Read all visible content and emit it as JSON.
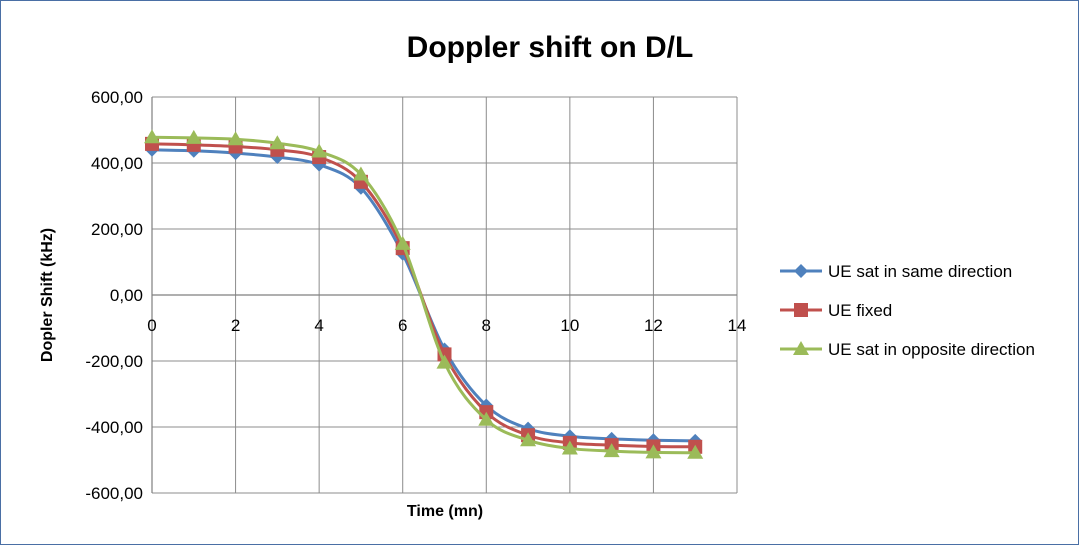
{
  "chart_data": {
    "type": "line",
    "title": "Doppler shift on D/L",
    "xlabel": "Time (mn)",
    "ylabel": "Dopler Shift (kHz)",
    "xlim": [
      0,
      14
    ],
    "ylim": [
      -600,
      600
    ],
    "x_ticks": [
      "0",
      "2",
      "4",
      "6",
      "8",
      "10",
      "12",
      "14"
    ],
    "y_ticks": [
      "600,00",
      "400,00",
      "200,00",
      "0,00",
      "-200,00",
      "-400,00",
      "-600,00"
    ],
    "grid": true,
    "smooth": true,
    "legend_position": "right",
    "x": [
      0,
      1,
      2,
      3,
      4,
      5,
      6,
      7,
      8,
      9,
      10,
      11,
      12,
      13
    ],
    "series": [
      {
        "name": "UE sat in same direction",
        "color": "#4f81bd",
        "marker": "diamond",
        "values": [
          440,
          437,
          430,
          418,
          395,
          325,
          125,
          -165,
          -335,
          -405,
          -428,
          -436,
          -440,
          -442
        ]
      },
      {
        "name": "UE fixed",
        "color": "#c0504d",
        "marker": "square",
        "values": [
          458,
          455,
          450,
          440,
          418,
          343,
          142,
          -180,
          -355,
          -425,
          -448,
          -455,
          -459,
          -460
        ]
      },
      {
        "name": "UE sat in opposite direction",
        "color": "#9bbb59",
        "marker": "triangle",
        "values": [
          478,
          476,
          472,
          460,
          435,
          365,
          155,
          -205,
          -378,
          -440,
          -465,
          -473,
          -477,
          -478
        ]
      }
    ]
  }
}
